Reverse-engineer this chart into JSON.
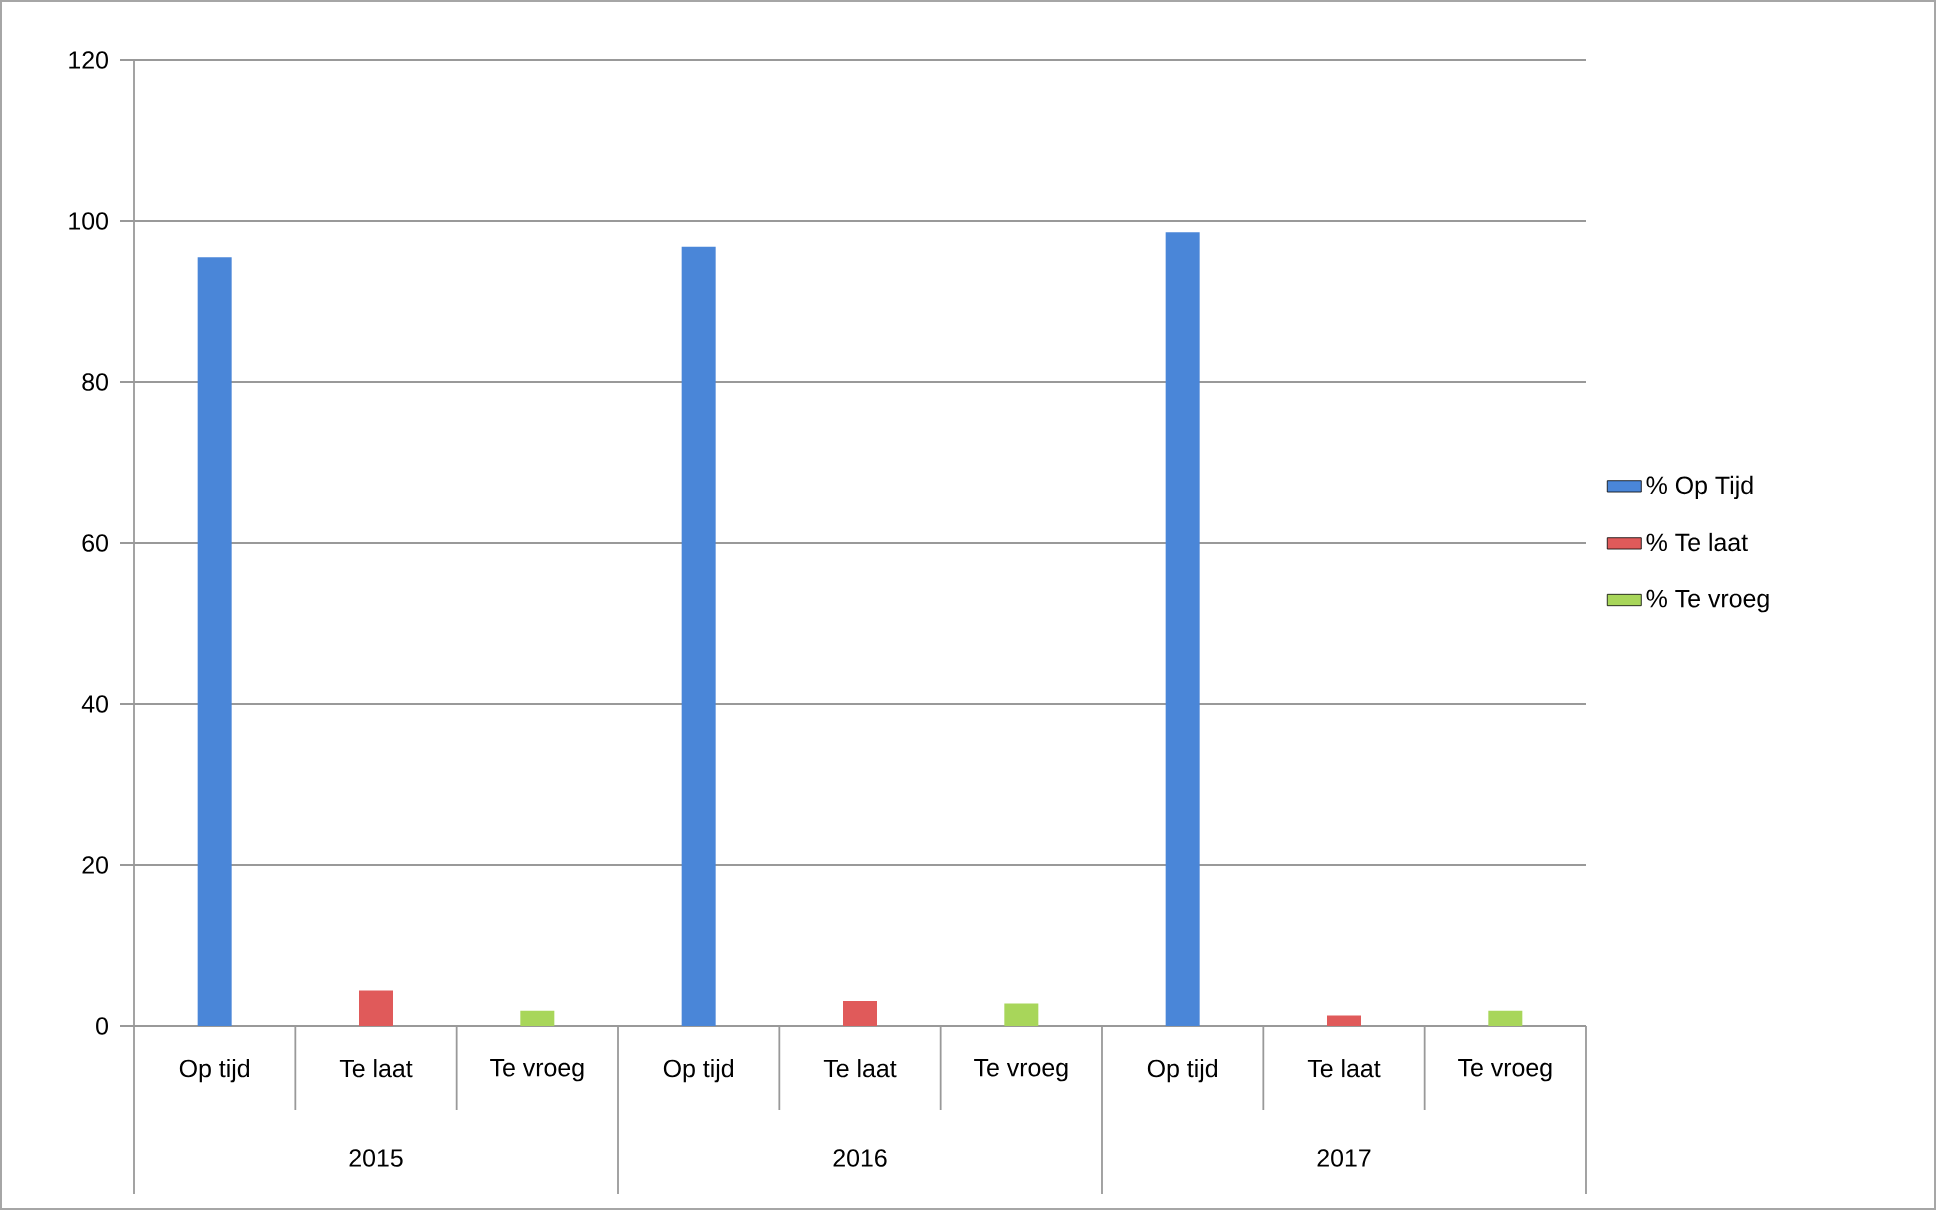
{
  "chart_data": {
    "type": "bar",
    "categories": [
      "Op tijd",
      "Te laat",
      "Te vroeg",
      "Op tijd",
      "Te laat",
      "Te vroeg",
      "Op tijd",
      "Te laat",
      "Te vroeg"
    ],
    "series": [
      {
        "name": "% Op Tijd",
        "color": "#4a86d8",
        "values": [
          95.5,
          null,
          null,
          96.8,
          null,
          null,
          98.6,
          null,
          null
        ]
      },
      {
        "name": "% Te laat",
        "color": "#e05a5a",
        "values": [
          null,
          4.4,
          null,
          null,
          3.1,
          null,
          null,
          1.3,
          null
        ]
      },
      {
        "name": "% Te vroeg",
        "color": "#a8d65a",
        "values": [
          null,
          null,
          1.9,
          null,
          null,
          2.8,
          null,
          null,
          1.9
        ]
      }
    ],
    "ylim": [
      0,
      120
    ],
    "yticks": [
      0,
      20,
      40,
      60,
      80,
      100,
      120
    ],
    "grid": "y",
    "legend": "right",
    "annotations": [
      "2015",
      "2016",
      "2017"
    ]
  }
}
